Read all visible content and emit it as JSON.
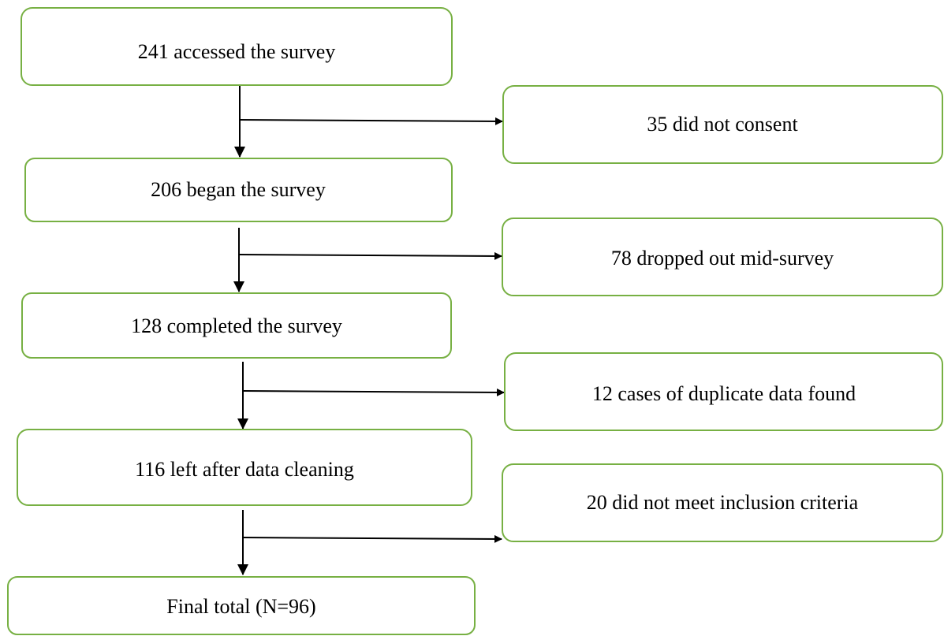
{
  "nodes": [
    {
      "label": "241 accessed the survey"
    },
    {
      "label": "35 did not consent"
    },
    {
      "label": "206 began the survey"
    },
    {
      "label": "78 dropped out mid-survey"
    },
    {
      "label": "128 completed the survey"
    },
    {
      "label": "12 cases of duplicate data found"
    },
    {
      "label": "116 left after data cleaning"
    },
    {
      "label": "20 did not meet inclusion criteria"
    },
    {
      "label": "Final total (N=96)"
    }
  ]
}
